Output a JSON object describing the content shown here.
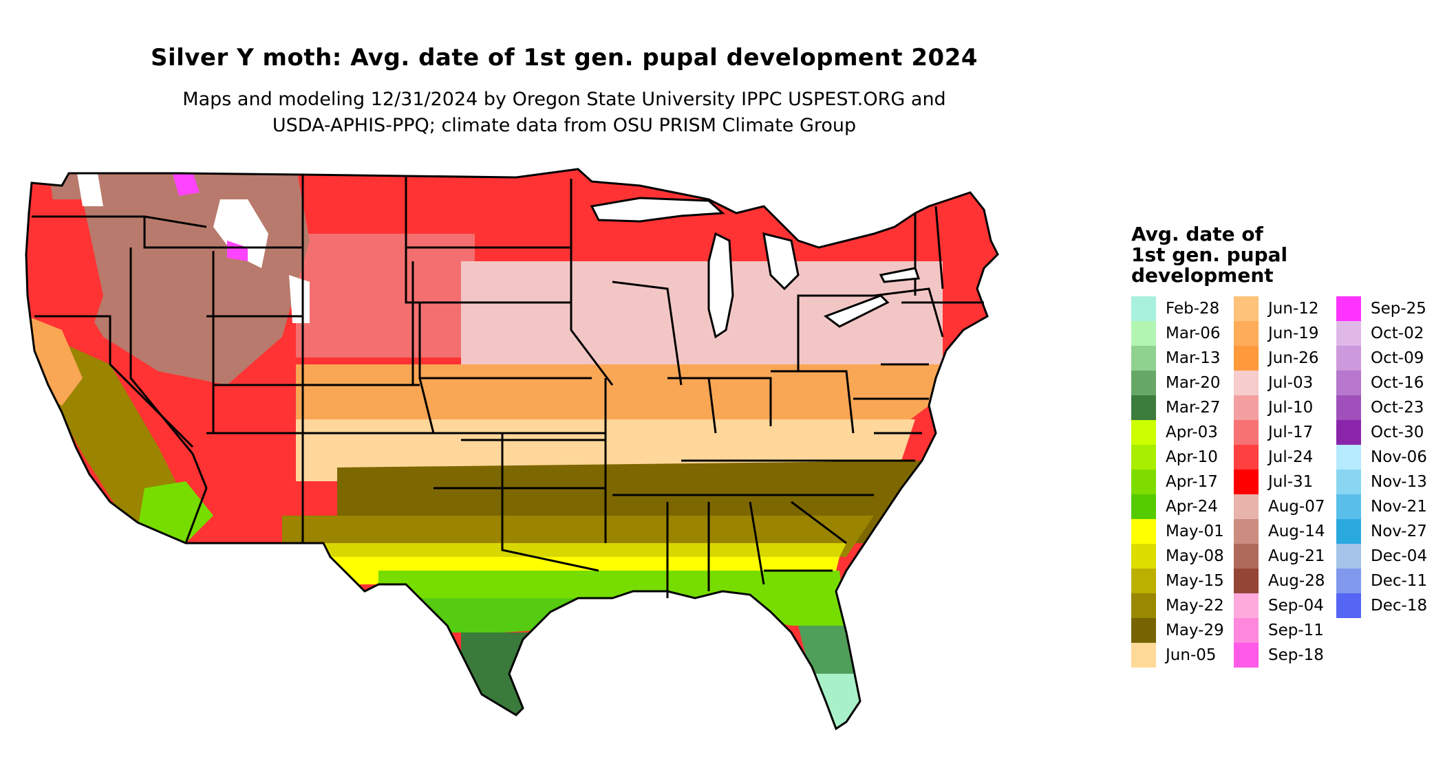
{
  "title": "Silver Y moth: Avg. date of 1st gen. pupal development 2024",
  "subtitle_lines": [
    "Maps and modeling 12/31/2024 by Oregon State University IPPC USPEST.ORG and",
    "USDA-APHIS-PPQ; climate data from OSU PRISM Climate Group"
  ],
  "map": {
    "name": "contiguous-us-degree-day-map",
    "region_colors": {
      "north": "#ff3333",
      "north_light": "#f47070",
      "north_pale": "#f3c6c6",
      "mountain_brown": "#b87a6c",
      "snow": "#ffffff",
      "pink": "#ff44ff",
      "midwest_orange": "#f9a655",
      "midwest_tan": "#ffd79a",
      "south_olive": "#7d6700",
      "south_olive2": "#9a8400",
      "gulf_yellow": "#ffff00",
      "gulf_yellow2": "#d8d800",
      "gulf_green": "#77dd00",
      "gulf_green2": "#55cc11",
      "florida_green": "#4f9f5a",
      "florida_dark": "#3a7a3a",
      "florida_mint": "#a8f0c8",
      "border": "#000000"
    }
  },
  "legend": {
    "title_lines": [
      "Avg. date of",
      "1st gen. pupal",
      "development"
    ],
    "columns": [
      [
        {
          "label": "Feb-28",
          "color": "#a8f1dc"
        },
        {
          "label": "Mar-06",
          "color": "#b2f5b2"
        },
        {
          "label": "Mar-13",
          "color": "#8fd18f"
        },
        {
          "label": "Mar-20",
          "color": "#67a767"
        },
        {
          "label": "Mar-27",
          "color": "#3c7c3c"
        },
        {
          "label": "Apr-03",
          "color": "#ccff00"
        },
        {
          "label": "Apr-10",
          "color": "#a8ee00"
        },
        {
          "label": "Apr-17",
          "color": "#7fdc00"
        },
        {
          "label": "Apr-24",
          "color": "#55cc00"
        },
        {
          "label": "May-01",
          "color": "#ffff00"
        },
        {
          "label": "May-08",
          "color": "#dddd00"
        },
        {
          "label": "May-15",
          "color": "#bbb000"
        },
        {
          "label": "May-22",
          "color": "#998800"
        },
        {
          "label": "May-29",
          "color": "#776300"
        },
        {
          "label": "Jun-05",
          "color": "#ffd998"
        }
      ],
      [
        {
          "label": "Jun-12",
          "color": "#ffc27a"
        },
        {
          "label": "Jun-19",
          "color": "#ffac5a"
        },
        {
          "label": "Jun-26",
          "color": "#ff9a3c"
        },
        {
          "label": "Jul-03",
          "color": "#f6cccc"
        },
        {
          "label": "Jul-10",
          "color": "#f4a0a0"
        },
        {
          "label": "Jul-17",
          "color": "#f77272"
        },
        {
          "label": "Jul-24",
          "color": "#ff4040"
        },
        {
          "label": "Jul-31",
          "color": "#ff0000"
        },
        {
          "label": "Aug-07",
          "color": "#e8b3ab"
        },
        {
          "label": "Aug-14",
          "color": "#cc8d80"
        },
        {
          "label": "Aug-21",
          "color": "#b06a5c"
        },
        {
          "label": "Aug-28",
          "color": "#944536"
        },
        {
          "label": "Sep-04",
          "color": "#ffaadd"
        },
        {
          "label": "Sep-11",
          "color": "#ff88dd"
        },
        {
          "label": "Sep-18",
          "color": "#ff5ae8"
        }
      ],
      [
        {
          "label": "Sep-25",
          "color": "#ff33ff"
        },
        {
          "label": "Oct-02",
          "color": "#e0b8e8"
        },
        {
          "label": "Oct-09",
          "color": "#cc99dd"
        },
        {
          "label": "Oct-16",
          "color": "#b677cc"
        },
        {
          "label": "Oct-23",
          "color": "#a050bb"
        },
        {
          "label": "Oct-30",
          "color": "#8a25aa"
        },
        {
          "label": "Nov-06",
          "color": "#b6eaff"
        },
        {
          "label": "Nov-13",
          "color": "#88d6f2"
        },
        {
          "label": "Nov-21",
          "color": "#59bfea"
        },
        {
          "label": "Nov-27",
          "color": "#2aa9de"
        },
        {
          "label": "Dec-04",
          "color": "#a6c4ea"
        },
        {
          "label": "Dec-11",
          "color": "#8099ec"
        },
        {
          "label": "Dec-18",
          "color": "#5566f5"
        }
      ]
    ]
  }
}
